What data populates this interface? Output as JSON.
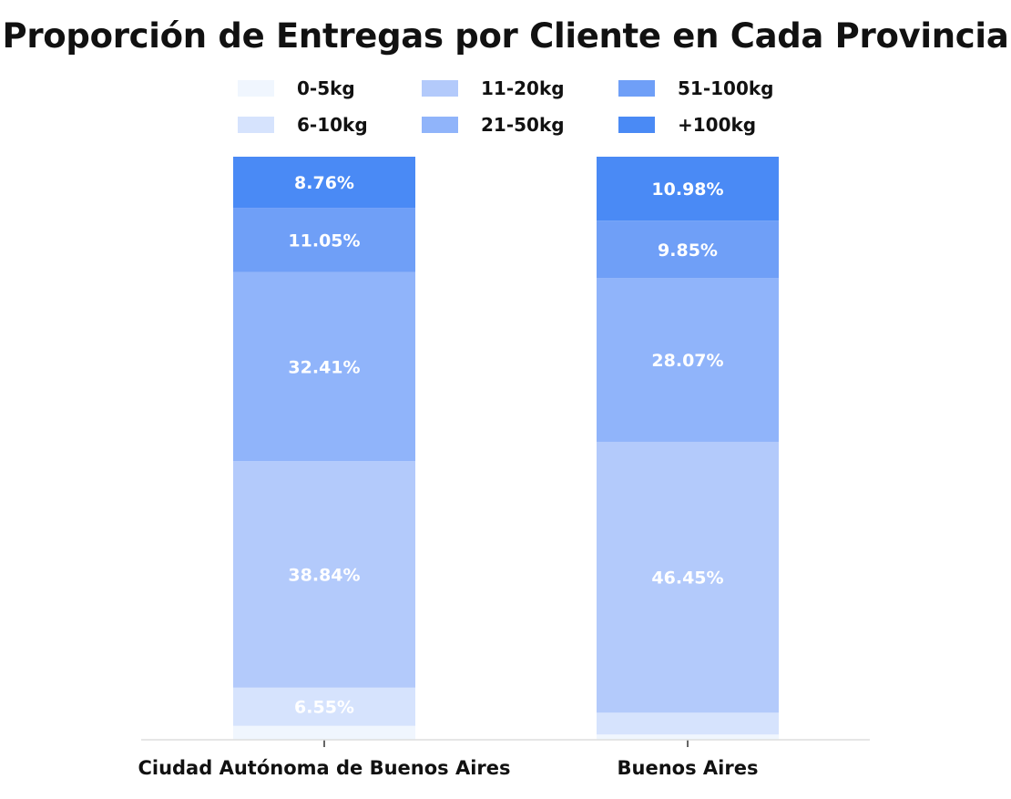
{
  "chart_data": {
    "type": "bar",
    "stacked": true,
    "title": "Proporción de Entregas por Cliente en Cada Provincia",
    "xlabel": "",
    "ylabel": "",
    "ylim": [
      0,
      100
    ],
    "grid": false,
    "legend_position": "top-center",
    "categories": [
      "Ciudad Autónoma de Buenos Aires",
      "Buenos Aires"
    ],
    "series": [
      {
        "name": "0-5kg",
        "values": [
          2.39,
          0.9
        ],
        "labels": [
          "",
          ""
        ],
        "color": "#f0f6fe"
      },
      {
        "name": "6-10kg",
        "values": [
          6.55,
          3.75
        ],
        "labels": [
          "6.55%",
          ""
        ],
        "color": "#d6e3fd"
      },
      {
        "name": "11-20kg",
        "values": [
          38.84,
          46.45
        ],
        "labels": [
          "38.84%",
          "46.45%"
        ],
        "color": "#b3cafb"
      },
      {
        "name": "21-50kg",
        "values": [
          32.41,
          28.07
        ],
        "labels": [
          "32.41%",
          "28.07%"
        ],
        "color": "#90b4fa"
      },
      {
        "name": "51-100kg",
        "values": [
          11.05,
          9.85
        ],
        "labels": [
          "11.05%",
          "9.85%"
        ],
        "color": "#6f9ff7"
      },
      {
        "name": "+100kg",
        "values": [
          8.76,
          10.98
        ],
        "labels": [
          "8.76%",
          "10.98%"
        ],
        "color": "#4a8af5"
      }
    ]
  }
}
